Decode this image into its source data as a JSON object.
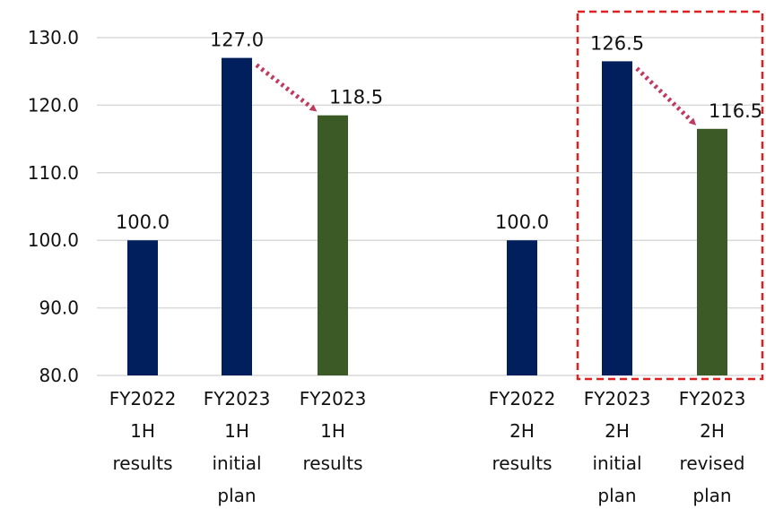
{
  "chart_data": {
    "type": "bar",
    "categories": [
      [
        "FY2022",
        "1H",
        "results"
      ],
      [
        "FY2023",
        "1H",
        "initial",
        "plan"
      ],
      [
        "FY2023",
        "1H",
        "results"
      ],
      [
        "FY2022",
        "2H",
        "results"
      ],
      [
        "FY2023",
        "2H",
        "initial",
        "plan"
      ],
      [
        "FY2023",
        "2H",
        "revised",
        "plan"
      ]
    ],
    "values": [
      100.0,
      127.0,
      118.5,
      100.0,
      126.5,
      116.5
    ],
    "value_labels": [
      "100.0",
      "127.0",
      "118.5",
      "100.0",
      "126.5",
      "116.5"
    ],
    "bar_colors": [
      "#001f5c",
      "#001f5c",
      "#3c5a25",
      "#001f5c",
      "#001f5c",
      "#3c5a25"
    ],
    "yticks": [
      "80.0",
      "90.0",
      "100.0",
      "110.0",
      "120.0",
      "130.0"
    ],
    "ylim": [
      80,
      130
    ],
    "grid": true,
    "arrow_color": "#c0395e",
    "highlight_box_color": "#e02020",
    "title": "",
    "xlabel": "",
    "ylabel": ""
  }
}
